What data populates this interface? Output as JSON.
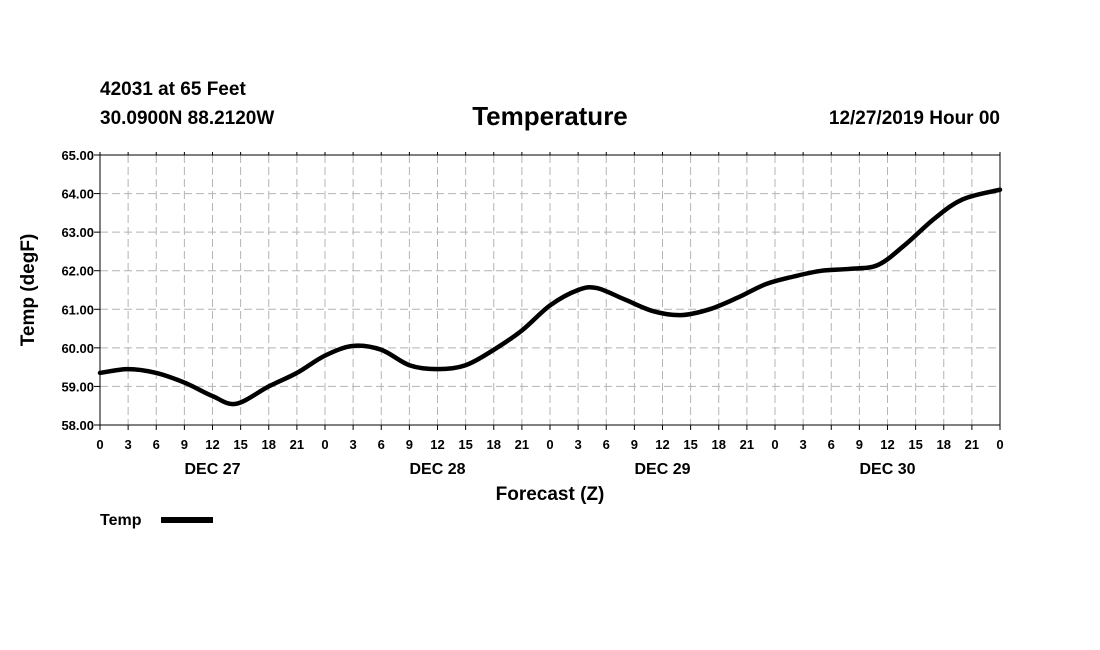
{
  "header": {
    "station": "42031 at 65 Feet",
    "coords": "30.0900N 88.2120W",
    "datetime": "12/27/2019 Hour 00"
  },
  "legend": {
    "label": "Temp",
    "color": "#000000"
  },
  "chart_data": {
    "type": "line",
    "title": "Temperature",
    "xlabel": "Forecast (Z)",
    "ylabel": "Temp (degF)",
    "ylim": [
      58,
      65
    ],
    "yticks": [
      "58.00",
      "59.00",
      "60.00",
      "61.00",
      "62.00",
      "63.00",
      "64.00",
      "65.00"
    ],
    "x_hours_range": [
      0,
      96
    ],
    "x_tick_labels": [
      "0",
      "3",
      "6",
      "9",
      "12",
      "15",
      "18",
      "21",
      "0",
      "3",
      "6",
      "9",
      "12",
      "15",
      "18",
      "21",
      "0",
      "3",
      "6",
      "9",
      "12",
      "15",
      "18",
      "21",
      "0",
      "3",
      "6",
      "9",
      "12",
      "15",
      "18",
      "21",
      "0"
    ],
    "day_labels": [
      {
        "label": "DEC 27",
        "hour": 12
      },
      {
        "label": "DEC 28",
        "hour": 36
      },
      {
        "label": "DEC 29",
        "hour": 60
      },
      {
        "label": "DEC 30",
        "hour": 84
      }
    ],
    "grid": true,
    "series": [
      {
        "name": "Temp",
        "color": "#000000",
        "x": [
          0,
          3,
          6,
          9,
          12,
          14.5,
          18,
          21,
          24,
          27,
          30,
          33,
          36,
          39,
          42,
          45,
          48,
          51,
          53,
          56,
          59,
          62,
          65,
          68,
          71,
          74,
          77,
          80,
          83,
          86,
          89,
          92,
          96
        ],
        "values": [
          59.35,
          59.45,
          59.35,
          59.1,
          58.75,
          58.55,
          59.0,
          59.35,
          59.8,
          60.05,
          59.95,
          59.55,
          59.45,
          59.55,
          59.95,
          60.45,
          61.1,
          61.5,
          61.55,
          61.25,
          60.95,
          60.85,
          61.0,
          61.3,
          61.65,
          61.85,
          62.0,
          62.05,
          62.15,
          62.7,
          63.35,
          63.85,
          64.1
        ]
      }
    ]
  }
}
